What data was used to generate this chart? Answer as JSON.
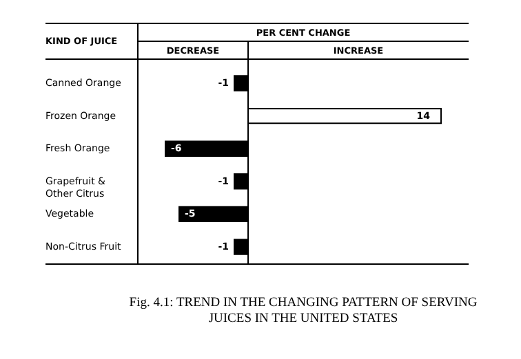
{
  "chart_data": {
    "type": "bar",
    "orientation": "horizontal",
    "title": "Fig. 4.1: TREND IN THE CHANGING PATTERN OF SERVING JUICES IN THE UNITED STATES",
    "ylabel": "KIND OF JUICE",
    "xlabel": "PER CENT CHANGE",
    "annotations": [
      "DECREASE",
      "INCREASE"
    ],
    "categories": [
      "Canned Orange",
      "Frozen Orange",
      "Fresh Orange",
      "Grapefruit & Other Citrus",
      "Vegetable",
      "Non-Citrus Fruit"
    ],
    "values": [
      -1,
      14,
      -6,
      -1,
      -5,
      -1
    ],
    "colors": [
      "#000000",
      "#ffffff",
      "#000000",
      "#000000",
      "#000000",
      "#000000"
    ],
    "xlim": [
      -8,
      16
    ],
    "data_labels": true
  }
}
